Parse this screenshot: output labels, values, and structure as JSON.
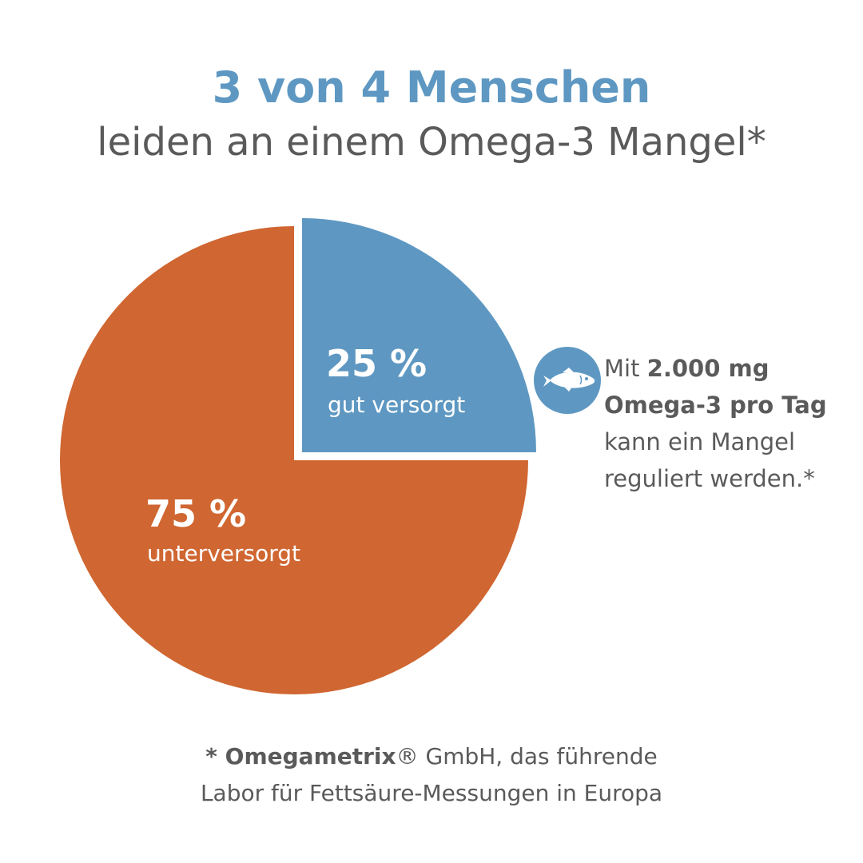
{
  "header": {
    "headline": "3 von 4  Menschen",
    "subline": "leiden an einem Omega-3 Mangel*"
  },
  "chart_data": {
    "type": "pie",
    "slices": [
      {
        "label": "gut versorgt",
        "value": 25,
        "value_text": "25 %",
        "color": "#5e98c2",
        "exploded": true
      },
      {
        "label": "unterversorgt",
        "value": 75,
        "value_text": "75 %",
        "color": "#d06631",
        "exploded": false
      }
    ]
  },
  "note": {
    "icon": "fish-icon",
    "prefix": "Mit ",
    "bold1": "2.000 mg",
    "bold2": "Omega-3 pro Tag",
    "line3": "kann ein Mangel",
    "line4": "reguliert werden.*"
  },
  "footer": {
    "star": "* ",
    "brand": "Omegametrix",
    "rest1": "® GmbH, das führende",
    "line2": "Labor für Fettsäure-Messungen in Europa"
  },
  "colors": {
    "blue": "#5e98c2",
    "orange": "#d06631",
    "text": "#5a5a5a"
  }
}
